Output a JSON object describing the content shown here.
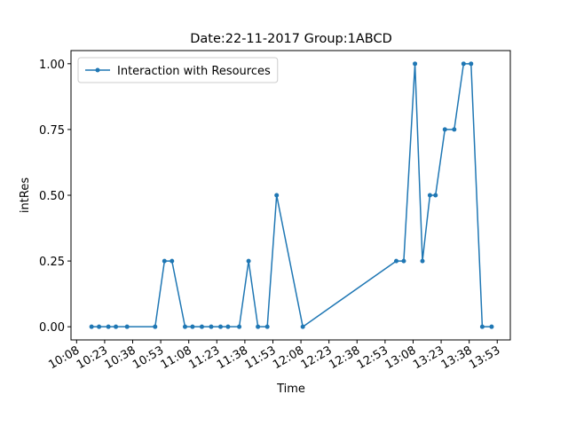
{
  "chart_data": {
    "type": "line",
    "title": "Date:22-11-2017  Group:1ABCD",
    "xlabel": "Time",
    "ylabel": "intRes",
    "x": [
      "10:16",
      "10:20",
      "10:25",
      "10:29",
      "10:35",
      "10:50",
      "10:55",
      "10:59",
      "11:06",
      "11:10",
      "11:15",
      "11:20",
      "11:25",
      "11:29",
      "11:35",
      "11:40",
      "11:45",
      "11:50",
      "11:55",
      "12:09",
      "12:59",
      "13:03",
      "13:09",
      "13:13",
      "13:17",
      "13:20",
      "13:25",
      "13:30",
      "13:35",
      "13:39",
      "13:45",
      "13:50"
    ],
    "series": [
      {
        "name": "Interaction with Resources",
        "color": "#1f77b4",
        "values": [
          0,
          0,
          0,
          0,
          0,
          0,
          0.25,
          0.25,
          0,
          0,
          0,
          0,
          0,
          0,
          0,
          0.25,
          0,
          0,
          0.5,
          0,
          0.25,
          0.25,
          1,
          0.25,
          0.5,
          0.5,
          0.75,
          0.75,
          1,
          1,
          0,
          0
        ]
      }
    ],
    "xlim": [
      "10:05",
      "14:00"
    ],
    "xticks": [
      "10:08",
      "10:23",
      "10:38",
      "10:53",
      "11:08",
      "11:23",
      "11:38",
      "11:53",
      "12:08",
      "12:23",
      "12:38",
      "12:53",
      "13:08",
      "13:23",
      "13:38",
      "13:53"
    ],
    "ylim": [
      -0.05,
      1.05
    ],
    "yticks": [
      {
        "value": 0,
        "label": "0.00"
      },
      {
        "value": 0.25,
        "label": "0.25"
      },
      {
        "value": 0.5,
        "label": "0.50"
      },
      {
        "value": 0.75,
        "label": "0.75"
      },
      {
        "value": 1,
        "label": "1.00"
      }
    ],
    "grid": false,
    "legend": "upper left"
  }
}
